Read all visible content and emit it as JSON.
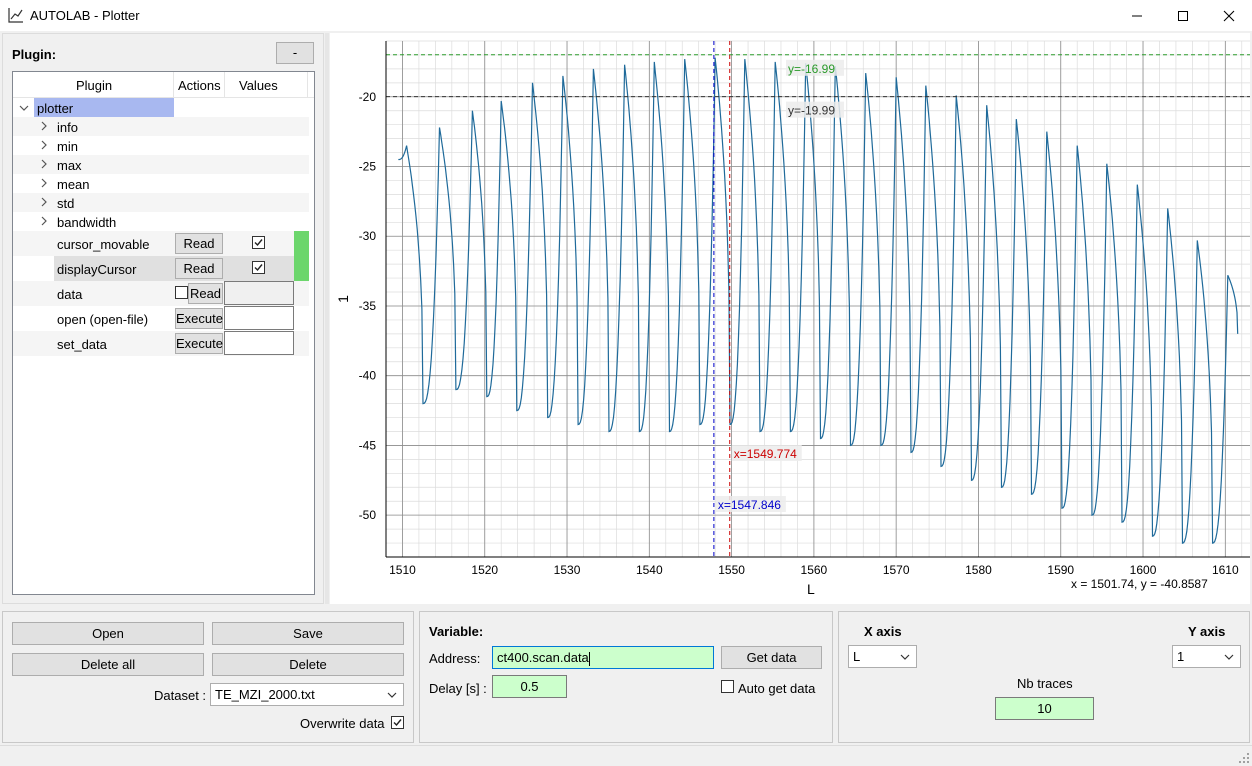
{
  "window": {
    "title": "AUTOLAB - Plotter"
  },
  "plugin_panel": {
    "label": "Plugin:",
    "collapse_label": "-",
    "headers": [
      "Plugin",
      "Actions",
      "Values"
    ],
    "root": "plotter",
    "children": [
      "info",
      "min",
      "max",
      "mean",
      "std",
      "bandwidth"
    ],
    "variables": [
      {
        "name": "cursor_movable",
        "action": "Read",
        "checked": true
      },
      {
        "name": "displayCursor",
        "action": "Read",
        "checked": true
      },
      {
        "name": "data",
        "action": "Read",
        "checked": false
      },
      {
        "name": "open (open-file)",
        "action": "Execute"
      },
      {
        "name": "set_data",
        "action": "Execute"
      }
    ]
  },
  "plot": {
    "xlabel": "L",
    "ylabel": "1",
    "xlim": [
      1508,
      1613
    ],
    "ylim": [
      -53,
      -16
    ],
    "xticks": [
      "1510",
      "1520",
      "1530",
      "1540",
      "1550",
      "1560",
      "1570",
      "1580",
      "1590",
      "1600",
      "1610"
    ],
    "yticks": [
      "-20",
      "-25",
      "-30",
      "-35",
      "-40",
      "-45",
      "-50"
    ],
    "trace_color": "#1f6a9a",
    "cursors": {
      "x1": {
        "label": "x=1547.846",
        "value": 1547.846,
        "color": "#0000cc"
      },
      "x2": {
        "label": "x=1549.774",
        "value": 1549.774,
        "color": "#cc0000"
      },
      "y1": {
        "label": "y=-16.99",
        "value": -16.99,
        "color": "#2a9a2a"
      },
      "y2": {
        "label": "y=-19.99",
        "value": -19.99,
        "color": "#333333"
      }
    },
    "coord_readout": "x = 1501.74, y = -40.8587"
  },
  "chart_data": {
    "type": "line",
    "xlabel": "L",
    "ylabel": "1",
    "xlim": [
      1508,
      1613
    ],
    "ylim": [
      -53,
      -16
    ],
    "grid": true,
    "series": [
      {
        "peaks_x": [
          1510.5,
          1514.5,
          1518.5,
          1522,
          1525.8,
          1529.5,
          1533.2,
          1537,
          1540.6,
          1544.3,
          1548,
          1551.6,
          1555.3,
          1559,
          1562.6,
          1566.3,
          1570,
          1573.6,
          1577.3,
          1581,
          1584.6,
          1588.3,
          1592,
          1595.6,
          1599.3,
          1603,
          1606.6,
          1610.3
        ],
        "peaks_y": [
          -23.5,
          -22.2,
          -21,
          -20.3,
          -19,
          -18.5,
          -18,
          -17.7,
          -17.5,
          -17.3,
          -17.2,
          -17.3,
          -17.5,
          -17.6,
          -17.8,
          -18.3,
          -18.6,
          -19.2,
          -19.9,
          -20.6,
          -21.6,
          -22.5,
          -23.5,
          -24.8,
          -26.3,
          -28,
          -30.3,
          -32.8
        ],
        "troughs_y": [
          -42,
          -41,
          -41.5,
          -42.5,
          -43,
          -43.5,
          -44,
          -44,
          -44,
          -43.5,
          -43.5,
          -44,
          -44,
          -44.5,
          -45,
          -45,
          -45.5,
          -46.5,
          -47.5,
          -48,
          -48.5,
          -49.5,
          -50,
          -50.5,
          -51.5,
          -52
        ]
      }
    ]
  },
  "file_panel": {
    "open_label": "Open",
    "save_label": "Save",
    "delete_all_label": "Delete all",
    "delete_label": "Delete",
    "dataset_label": "Dataset :",
    "dataset_value": "TE_MZI_2000.txt",
    "overwrite_label": "Overwrite data"
  },
  "variable_panel": {
    "title": "Variable:",
    "address_label": "Address:",
    "address_value": "ct400.scan.data",
    "get_data_label": "Get data",
    "delay_label": "Delay [s] :",
    "delay_value": "0.5",
    "auto_get_label": "Auto get data"
  },
  "axis_panel": {
    "x_axis_label": "X axis",
    "x_axis_value": "L",
    "y_axis_label": "Y axis",
    "y_axis_value": "1",
    "nb_traces_label": "Nb traces",
    "nb_traces_value": "10"
  }
}
